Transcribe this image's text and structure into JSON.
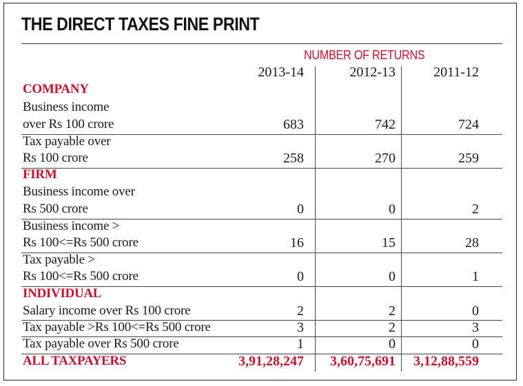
{
  "title": "THE DIRECT TAXES FINE PRINT",
  "column_group_header": "NUMBER OF RETURNS",
  "years": [
    "2013-14",
    "2012-13",
    "2011-12"
  ],
  "sections": {
    "company": "COMPANY",
    "firm": "FIRM",
    "individual": "INDIVIDUAL"
  },
  "rows": [
    {
      "line1": "Business income",
      "line2": "over Rs 100 crore",
      "values": [
        "683",
        "742",
        "724"
      ]
    },
    {
      "line1": "Tax payable over",
      "line2": "Rs 100 crore",
      "values": [
        "258",
        "270",
        "259"
      ]
    },
    {
      "line1": "Business income over",
      "line2": "Rs 500 crore",
      "values": [
        "0",
        "0",
        "2"
      ]
    },
    {
      "line1": "Business income >",
      "line2": "Rs 100<=Rs 500 crore",
      "values": [
        "16",
        "15",
        "28"
      ]
    },
    {
      "line1": "Tax payable >",
      "line2": "Rs 100<=Rs 500 crore",
      "values": [
        "0",
        "0",
        "1"
      ]
    },
    {
      "line1": "Salary income over Rs 100 crore",
      "values": [
        "2",
        "2",
        "0"
      ]
    },
    {
      "line1": "Tax payable >Rs 100<=Rs 500 crore",
      "values": [
        "3",
        "2",
        "3"
      ]
    },
    {
      "line1": "Tax payable over Rs 500 crore",
      "values": [
        "1",
        "0",
        "0"
      ]
    }
  ],
  "total": {
    "label": "ALL TAXPAYERS",
    "values": [
      "3,91,28,247",
      "3,60,75,691",
      "3,12,88,559"
    ]
  },
  "chart_data": {
    "type": "table",
    "title": "THE DIRECT TAXES FINE PRINT",
    "subtitle": "NUMBER OF RETURNS",
    "columns": [
      "2013-14",
      "2012-13",
      "2011-12"
    ],
    "groups": [
      {
        "name": "COMPANY",
        "rows": [
          {
            "label": "Business income over Rs 100 crore",
            "values": [
              683,
              742,
              724
            ]
          },
          {
            "label": "Tax payable over Rs 100 crore",
            "values": [
              258,
              270,
              259
            ]
          }
        ]
      },
      {
        "name": "FIRM",
        "rows": [
          {
            "label": "Business income over Rs 500 crore",
            "values": [
              0,
              0,
              2
            ]
          },
          {
            "label": "Business income > Rs 100<=Rs 500 crore",
            "values": [
              16,
              15,
              28
            ]
          },
          {
            "label": "Tax payable > Rs 100<=Rs 500 crore",
            "values": [
              0,
              0,
              1
            ]
          }
        ]
      },
      {
        "name": "INDIVIDUAL",
        "rows": [
          {
            "label": "Salary income over Rs 100 crore",
            "values": [
              2,
              2,
              0
            ]
          },
          {
            "label": "Tax payable >Rs 100<=Rs 500 crore",
            "values": [
              3,
              2,
              3
            ]
          },
          {
            "label": "Tax payable over Rs 500 crore",
            "values": [
              1,
              0,
              0
            ]
          }
        ]
      }
    ],
    "total": {
      "label": "ALL TAXPAYERS",
      "values": [
        39128247,
        36075691,
        31288559
      ]
    }
  }
}
